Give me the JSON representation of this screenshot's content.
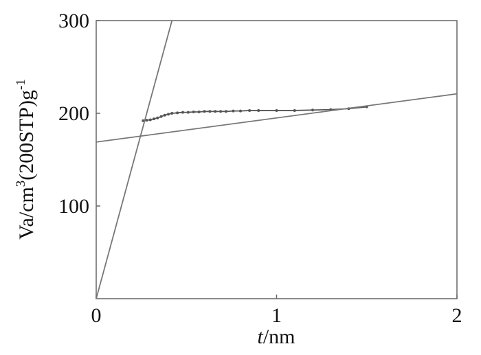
{
  "chart_data": {
    "type": "line",
    "xlabel": [
      "t",
      "/nm"
    ],
    "ylabel": [
      "Va/cm",
      "3",
      "(200STP)g",
      "-1"
    ],
    "xlim": [
      0,
      2
    ],
    "xticks": [
      0,
      1,
      2
    ],
    "ylim": [
      0,
      300
    ],
    "yticks": [
      100,
      200,
      300
    ],
    "series": [
      {
        "color": "#555555",
        "markers": true,
        "x": [
          0.26,
          0.28,
          0.3,
          0.32,
          0.34,
          0.36,
          0.38,
          0.4,
          0.42,
          0.45,
          0.48,
          0.51,
          0.54,
          0.57,
          0.6,
          0.63,
          0.66,
          0.69,
          0.72,
          0.76,
          0.8,
          0.85,
          0.9,
          1.0,
          1.1,
          1.2,
          1.3,
          1.4,
          1.5
        ],
        "values": [
          192,
          192.5,
          193,
          194,
          195,
          196.5,
          198,
          199,
          200,
          200.5,
          201,
          201,
          201.5,
          201.5,
          202,
          202,
          202,
          202,
          202,
          202.5,
          202.5,
          203,
          203,
          203,
          203,
          203.5,
          204,
          205,
          207
        ]
      },
      {
        "color": "#777777",
        "markers": false,
        "x": [
          0,
          0.42
        ],
        "values": [
          0,
          300
        ]
      },
      {
        "color": "#777777",
        "markers": false,
        "x": [
          0,
          2
        ],
        "values": [
          169,
          221
        ]
      }
    ]
  }
}
